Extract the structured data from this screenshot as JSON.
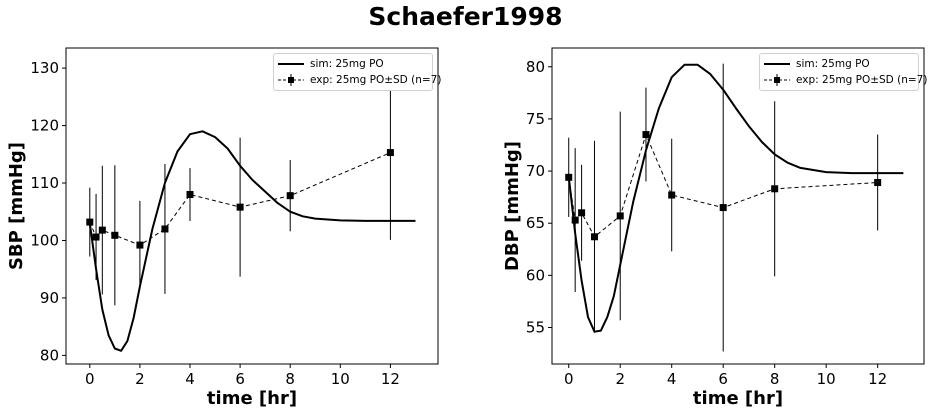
{
  "figure": {
    "title": "Schaefer1998"
  },
  "chart_data": [
    {
      "type": "line",
      "xlabel": "time [hr]",
      "ylabel": "SBP [mmHg]",
      "xlim": [
        -0.95,
        13.9
      ],
      "ylim": [
        78.5,
        133.5
      ],
      "xticks": [
        0,
        2,
        4,
        6,
        8,
        10,
        12
      ],
      "yticks": [
        80,
        90,
        100,
        110,
        120,
        130
      ],
      "grid": false,
      "legend_position": "top-right",
      "series": [
        {
          "name": "sim: 25mg PO",
          "style": "solid",
          "x": [
            0,
            0.25,
            0.5,
            0.75,
            1.0,
            1.25,
            1.5,
            1.75,
            2.0,
            2.5,
            3.0,
            3.5,
            4.0,
            4.5,
            5.0,
            5.5,
            6.0,
            6.5,
            7.0,
            7.5,
            8.0,
            8.5,
            9.0,
            10.0,
            11.0,
            12.0,
            13.0
          ],
          "y": [
            103,
            95,
            88,
            83.5,
            81.2,
            80.8,
            82.5,
            86.5,
            92,
            102,
            110,
            115.5,
            118.5,
            119,
            118,
            116,
            113,
            110.5,
            108.5,
            106.5,
            105,
            104.2,
            103.8,
            103.5,
            103.4,
            103.4,
            103.4
          ]
        },
        {
          "name": "exp: 25mg PO±SD (n=7)",
          "style": "dashed",
          "x": [
            0,
            0.25,
            0.5,
            1,
            2,
            3,
            4,
            6,
            8,
            12
          ],
          "y": [
            103.2,
            100.6,
            101.8,
            100.9,
            99.2,
            102,
            108,
            105.8,
            107.8,
            115.3
          ],
          "sd": [
            6,
            7.5,
            11.2,
            12.2,
            7.7,
            11.3,
            4.6,
            12.1,
            6.2,
            15.2
          ]
        }
      ]
    },
    {
      "type": "line",
      "xlabel": "time [hr]",
      "ylabel": "DBP [mmHg]",
      "xlim": [
        -0.65,
        13.8
      ],
      "ylim": [
        51.5,
        81.8
      ],
      "xticks": [
        0,
        2,
        4,
        6,
        8,
        10,
        12
      ],
      "yticks": [
        55,
        60,
        65,
        70,
        75,
        80
      ],
      "grid": false,
      "legend_position": "top-right",
      "series": [
        {
          "name": "sim: 25mg PO",
          "style": "solid",
          "x": [
            0,
            0.25,
            0.5,
            0.75,
            1.0,
            1.25,
            1.5,
            1.75,
            2.0,
            2.5,
            3.0,
            3.5,
            4.0,
            4.5,
            5.0,
            5.5,
            6.0,
            6.5,
            7.0,
            7.5,
            8.0,
            8.5,
            9.0,
            10.0,
            11.0,
            12.0,
            13.0
          ],
          "y": [
            69.5,
            64,
            59.5,
            56,
            54.6,
            54.7,
            56,
            58,
            61,
            67,
            72,
            76,
            79,
            80.2,
            80.2,
            79.3,
            77.8,
            76,
            74.3,
            72.8,
            71.6,
            70.8,
            70.3,
            69.9,
            69.8,
            69.8,
            69.8
          ]
        },
        {
          "name": "exp: 25mg PO±SD (n=7)",
          "style": "dashed",
          "x": [
            0,
            0.25,
            0.5,
            1,
            2,
            3,
            4,
            6,
            8,
            12
          ],
          "y": [
            69.4,
            65.3,
            66,
            63.7,
            65.7,
            73.5,
            67.7,
            66.5,
            68.3,
            68.9
          ],
          "sd": [
            3.8,
            6.9,
            4.6,
            9.2,
            10,
            4.5,
            5.4,
            13.8,
            8.4,
            4.6
          ]
        }
      ]
    }
  ]
}
